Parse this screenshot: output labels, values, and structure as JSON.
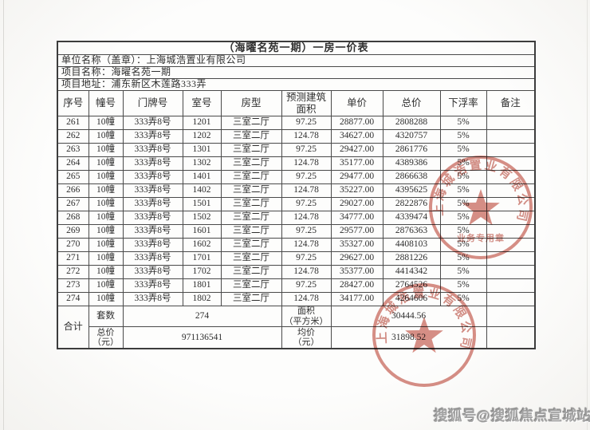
{
  "page": {
    "background": "#f7f6f3",
    "watermark_text": "搜狐号@搜狐焦点宣城站"
  },
  "table": {
    "title": "（海曜名苑一期）一房一价表",
    "company_line": "单位名称（盖章）：上海城浩置业有限公司",
    "project_line": "项目名称：海曜名苑一期",
    "address_line": "项目地址：浦东新区木莲路333弄",
    "columns": [
      "序号",
      "幢号",
      "门牌号",
      "室号",
      "房型",
      "预测建筑面积",
      "单价",
      "总价",
      "下浮率",
      "备注"
    ],
    "rows": [
      {
        "no": "261",
        "building": "10幢",
        "gate": "333弄8号",
        "room": "1201",
        "layout": "三室二厅",
        "area": "97.25",
        "unit_price": "28877.00",
        "total_price": "2808288",
        "discount": "5%",
        "note": ""
      },
      {
        "no": "262",
        "building": "10幢",
        "gate": "333弄8号",
        "room": "1202",
        "layout": "三室二厅",
        "area": "124.78",
        "unit_price": "34627.00",
        "total_price": "4320757",
        "discount": "5%",
        "note": ""
      },
      {
        "no": "263",
        "building": "10幢",
        "gate": "333弄8号",
        "room": "1301",
        "layout": "三室二厅",
        "area": "97.25",
        "unit_price": "29427.00",
        "total_price": "2861776",
        "discount": "5%",
        "note": ""
      },
      {
        "no": "264",
        "building": "10幢",
        "gate": "333弄8号",
        "room": "1302",
        "layout": "三室二厅",
        "area": "124.78",
        "unit_price": "35177.00",
        "total_price": "4389386",
        "discount": "5%",
        "note": ""
      },
      {
        "no": "265",
        "building": "10幢",
        "gate": "333弄8号",
        "room": "1401",
        "layout": "三室二厅",
        "area": "97.25",
        "unit_price": "29477.00",
        "total_price": "2866638",
        "discount": "5%",
        "note": ""
      },
      {
        "no": "266",
        "building": "10幢",
        "gate": "333弄8号",
        "room": "1402",
        "layout": "三室二厅",
        "area": "124.78",
        "unit_price": "35227.00",
        "total_price": "4395625",
        "discount": "5%",
        "note": ""
      },
      {
        "no": "267",
        "building": "10幢",
        "gate": "333弄8号",
        "room": "1501",
        "layout": "三室二厅",
        "area": "97.25",
        "unit_price": "29027.00",
        "total_price": "2822876",
        "discount": "5%",
        "note": ""
      },
      {
        "no": "268",
        "building": "10幢",
        "gate": "333弄8号",
        "room": "1502",
        "layout": "三室二厅",
        "area": "124.78",
        "unit_price": "34777.00",
        "total_price": "4339474",
        "discount": "5%",
        "note": ""
      },
      {
        "no": "269",
        "building": "10幢",
        "gate": "333弄8号",
        "room": "1601",
        "layout": "三室二厅",
        "area": "97.25",
        "unit_price": "29577.00",
        "total_price": "2876363",
        "discount": "5%",
        "note": ""
      },
      {
        "no": "270",
        "building": "10幢",
        "gate": "333弄8号",
        "room": "1602",
        "layout": "三室二厅",
        "area": "124.78",
        "unit_price": "35327.00",
        "total_price": "4408103",
        "discount": "5%",
        "note": ""
      },
      {
        "no": "271",
        "building": "10幢",
        "gate": "333弄8号",
        "room": "1701",
        "layout": "三室二厅",
        "area": "97.25",
        "unit_price": "29627.00",
        "total_price": "2881226",
        "discount": "5%",
        "note": ""
      },
      {
        "no": "272",
        "building": "10幢",
        "gate": "333弄8号",
        "room": "1702",
        "layout": "三室二厅",
        "area": "124.78",
        "unit_price": "35377.00",
        "total_price": "4414342",
        "discount": "5%",
        "note": ""
      },
      {
        "no": "273",
        "building": "10幢",
        "gate": "333弄8号",
        "room": "1801",
        "layout": "三室二厅",
        "area": "97.25",
        "unit_price": "28427.00",
        "total_price": "2764526",
        "discount": "5%",
        "note": ""
      },
      {
        "no": "274",
        "building": "10幢",
        "gate": "333弄8号",
        "room": "1802",
        "layout": "三室二厅",
        "area": "124.78",
        "unit_price": "34177.00",
        "total_price": "4264606",
        "discount": "5%",
        "note": ""
      }
    ],
    "summary": {
      "total_label": "合计",
      "units_label": "套数",
      "units_value": "274",
      "area_label": "面积\n（平方米）",
      "area_value": "30444.56",
      "price_label": "总价\n（元）",
      "price_value": "971136541",
      "avg_label": "均价\n（元）",
      "avg_value": "31898.52"
    }
  },
  "stamps": [
    {
      "arc_text": "上海城浩置业有限公司",
      "bottom_text": "业务专用章",
      "color": "#bf4a3c"
    },
    {
      "arc_text": "上海城浩置业有限公司",
      "bottom_text": "",
      "color": "#bf4a3c"
    }
  ]
}
